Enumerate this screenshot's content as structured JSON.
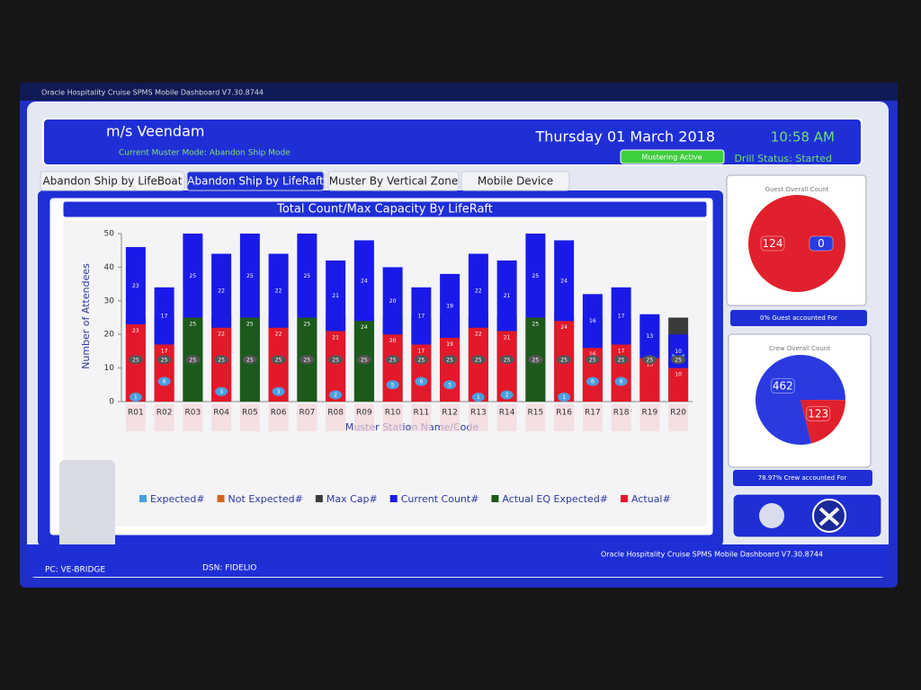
{
  "window": {
    "title": "Oracle Hospitality Cruise SPMS Mobile Dashboard V7.30.8744"
  },
  "header": {
    "ship": "m/s Veendam",
    "mode": "Current Muster Mode: Abandon Ship Mode",
    "date": "Thursday 01 March 2018",
    "time": "10:58 AM",
    "status_badge": "Mustering Active",
    "drill_status": "Drill Status: Started"
  },
  "tabs": [
    "Abandon Ship by LifeBoat",
    "Abandon Ship by LifeRaft",
    "Muster By Vertical Zone",
    "Mobile Device"
  ],
  "active_tab": 1,
  "chart_data": [
    {
      "type": "bar",
      "title": "Total Count/Max Capacity By LifeRaft",
      "xlabel": "Muster Station Name/Code",
      "ylabel": "Number of Attendees",
      "categories": [
        "R01",
        "R02",
        "R03",
        "R04",
        "R05",
        "R06",
        "R07",
        "R08",
        "R09",
        "R10",
        "R11",
        "R12",
        "R13",
        "R14",
        "R15",
        "R16",
        "R17",
        "R18",
        "R19",
        "R20"
      ],
      "ylim": [
        0,
        50
      ],
      "yticks": [
        0,
        10,
        20,
        30,
        40,
        50
      ],
      "grid": false,
      "series": [
        {
          "name": "Expected#",
          "color": "#4a9fe0",
          "mark": "marker",
          "values": [
            1,
            6,
            null,
            3,
            null,
            3,
            null,
            2,
            null,
            5,
            6,
            5,
            1,
            2,
            null,
            1,
            6,
            6,
            12,
            14
          ]
        },
        {
          "name": "Not Expected#",
          "color": "#d2651c",
          "mark": "marker",
          "values": [
            null,
            null,
            null,
            null,
            null,
            null,
            null,
            null,
            null,
            null,
            null,
            null,
            null,
            null,
            null,
            null,
            null,
            null,
            null,
            null
          ]
        },
        {
          "name": "Max Cap#",
          "color": "#3b3b3b",
          "mark": "overlay",
          "values": [
            25,
            25,
            25,
            25,
            25,
            25,
            25,
            25,
            25,
            25,
            25,
            25,
            25,
            25,
            25,
            25,
            25,
            25,
            25,
            25
          ]
        },
        {
          "name": "Current Count#",
          "color": "#1a1ae8",
          "mark": "stack",
          "stack_level": 1,
          "values": [
            23,
            17,
            25,
            22,
            25,
            22,
            25,
            21,
            24,
            20,
            17,
            19,
            22,
            21,
            25,
            24,
            16,
            17,
            13,
            10
          ]
        },
        {
          "name": "Actual EQ Expected#",
          "color": "#1c5a1c",
          "mark": "stack",
          "stack_level": 0,
          "values": [
            null,
            null,
            25,
            null,
            25,
            null,
            25,
            null,
            24,
            null,
            null,
            null,
            null,
            null,
            25,
            null,
            null,
            null,
            null,
            null
          ]
        },
        {
          "name": "Actual#",
          "color": "#e2192a",
          "mark": "stack",
          "stack_level": 0,
          "values": [
            23,
            17,
            null,
            22,
            null,
            22,
            null,
            21,
            null,
            20,
            17,
            19,
            22,
            21,
            null,
            24,
            16,
            17,
            13,
            10
          ]
        }
      ]
    },
    {
      "type": "pie",
      "title": "Guest Overall Count",
      "values": [
        124,
        0
      ],
      "colors": [
        "#e0202c",
        "#2a3ae0"
      ],
      "caption": "0% Guest accounted For"
    },
    {
      "type": "pie",
      "title": "Crew Overall Count",
      "values": [
        462,
        123
      ],
      "colors": [
        "#2a3ae0",
        "#e0202c"
      ],
      "caption": "78.97% Crew accounted For"
    }
  ],
  "footer": {
    "pc": "PC: VE-BRIDGE",
    "dsn": "DSN: FIDELIO",
    "version": "Oracle Hospitality Cruise SPMS Mobile Dashboard V7.30.8744"
  }
}
